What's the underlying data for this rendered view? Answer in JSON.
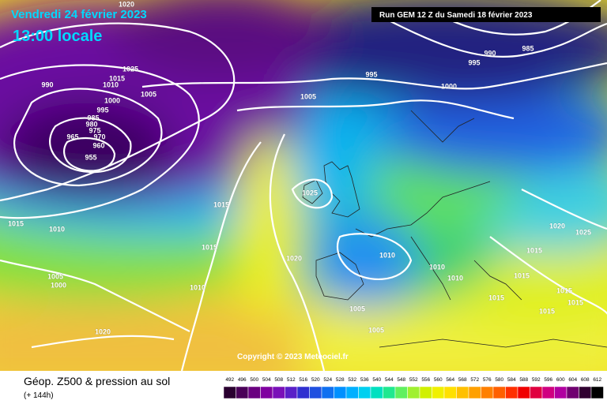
{
  "header": {
    "date": "Vendredi 24 février 2023",
    "time": "13:00 locale",
    "run": "Run GEM 12 Z du Samedi 18 février 2023"
  },
  "copyright": "Copyright © 2023 Meteociel.fr",
  "legend": {
    "title": "Géop. Z500 & pression au sol",
    "subtitle": "(+ 144h)",
    "scale": [
      492,
      496,
      500,
      504,
      508,
      512,
      516,
      520,
      524,
      528,
      532,
      536,
      540,
      544,
      548,
      552,
      556,
      560,
      564,
      568,
      572,
      576,
      580,
      584,
      588,
      592,
      596,
      600,
      604,
      608,
      612
    ],
    "colors": [
      "#2a0030",
      "#4a0058",
      "#6a0080",
      "#8000a0",
      "#7a10b8",
      "#5a20c8",
      "#3030d0",
      "#2050e0",
      "#1070f0",
      "#0090ff",
      "#00b0ff",
      "#00d0f0",
      "#00e0c0",
      "#20e890",
      "#60f060",
      "#a0f030",
      "#d0f000",
      "#f0f000",
      "#ffe000",
      "#ffc000",
      "#ffa000",
      "#ff8000",
      "#ff6000",
      "#ff3000",
      "#f00000",
      "#e00040",
      "#d00080",
      "#b000a0",
      "#700070",
      "#300030",
      "#000000"
    ]
  },
  "isobar_labels": [
    1020,
    1025,
    990,
    1015,
    1010,
    1005,
    1000,
    995,
    985,
    980,
    975,
    970,
    965,
    960,
    955,
    1005,
    995,
    995,
    990,
    985,
    1000,
    1025,
    1015,
    1010,
    1015,
    1015,
    1020,
    1010,
    1010,
    1010,
    1005,
    1000,
    1010,
    1005,
    1005,
    1020,
    1020,
    1025,
    1015,
    1015,
    1015,
    1015,
    1015,
    1015
  ]
}
